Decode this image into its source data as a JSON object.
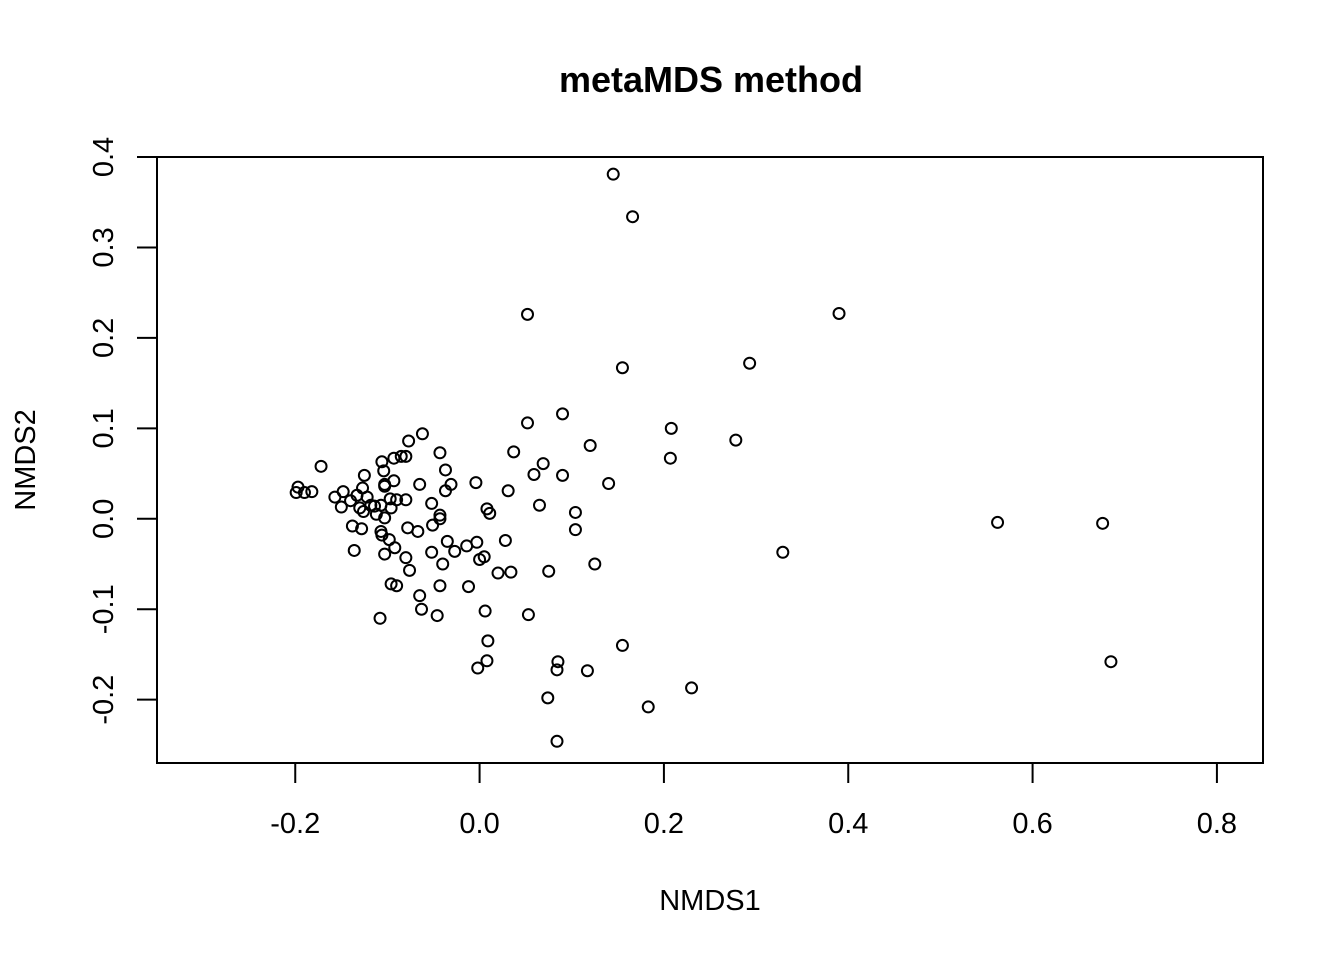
{
  "chart_data": {
    "type": "scatter",
    "title": "metaMDS method",
    "xlabel": "NMDS1",
    "ylabel": "NMDS2",
    "xlim": [
      -0.35,
      0.85
    ],
    "ylim": [
      -0.27,
      0.4
    ],
    "xticks": [
      -0.2,
      0.0,
      0.2,
      0.4,
      0.6,
      0.8
    ],
    "xtick_labels": [
      "-0.2",
      "0.0",
      "0.2",
      "0.4",
      "0.6",
      "0.8"
    ],
    "yticks": [
      -0.2,
      -0.1,
      0.0,
      0.1,
      0.2,
      0.3,
      0.4
    ],
    "ytick_labels": [
      "-0.2",
      "-0.1",
      "0.0",
      "0.1",
      "0.2",
      "0.3",
      "0.4"
    ],
    "grid": false,
    "marker": "open-circle",
    "series": [
      {
        "points": [
          [
            0.145,
            0.381
          ],
          [
            0.166,
            0.334
          ],
          [
            0.052,
            0.226
          ],
          [
            0.39,
            0.227
          ],
          [
            0.155,
            0.167
          ],
          [
            0.293,
            0.172
          ],
          [
            0.09,
            0.116
          ],
          [
            0.052,
            0.106
          ],
          [
            0.208,
            0.1
          ],
          [
            0.278,
            0.087
          ],
          [
            0.12,
            0.081
          ],
          [
            0.207,
            0.067
          ],
          [
            0.037,
            0.074
          ],
          [
            0.069,
            0.061
          ],
          [
            0.059,
            0.049
          ],
          [
            0.09,
            0.048
          ],
          [
            0.14,
            0.039
          ],
          [
            0.031,
            0.031
          ],
          [
            0.065,
            0.015
          ],
          [
            0.104,
            0.007
          ],
          [
            0.104,
            -0.012
          ],
          [
            0.562,
            -0.004
          ],
          [
            0.676,
            -0.005
          ],
          [
            0.329,
            -0.037
          ],
          [
            0.125,
            -0.05
          ],
          [
            0.075,
            -0.058
          ],
          [
            0.034,
            -0.059
          ],
          [
            0.02,
            -0.06
          ],
          [
            0.053,
            -0.106
          ],
          [
            0.155,
            -0.14
          ],
          [
            0.685,
            -0.158
          ],
          [
            0.085,
            -0.158
          ],
          [
            0.084,
            -0.167
          ],
          [
            0.117,
            -0.168
          ],
          [
            0.074,
            -0.198
          ],
          [
            0.23,
            -0.187
          ],
          [
            0.183,
            -0.208
          ],
          [
            0.084,
            -0.246
          ],
          [
            0.009,
            -0.135
          ],
          [
            0.008,
            -0.157
          ],
          [
            -0.002,
            -0.165
          ],
          [
            0.006,
            -0.102
          ],
          [
            0.028,
            -0.024
          ],
          [
            0.005,
            -0.042
          ],
          [
            0.0,
            -0.045
          ],
          [
            -0.003,
            -0.026
          ],
          [
            -0.014,
            -0.03
          ],
          [
            -0.027,
            -0.036
          ],
          [
            -0.012,
            -0.075
          ],
          [
            -0.043,
            -0.074
          ],
          [
            -0.046,
            -0.107
          ],
          [
            -0.04,
            -0.05
          ],
          [
            -0.035,
            -0.025
          ],
          [
            -0.052,
            -0.037
          ],
          [
            -0.063,
            -0.1
          ],
          [
            -0.065,
            -0.085
          ],
          [
            -0.076,
            -0.057
          ],
          [
            -0.08,
            -0.043
          ],
          [
            -0.09,
            -0.074
          ],
          [
            -0.096,
            -0.072
          ],
          [
            -0.108,
            -0.11
          ],
          [
            -0.103,
            -0.039
          ],
          [
            -0.092,
            -0.032
          ],
          [
            -0.098,
            -0.023
          ],
          [
            -0.106,
            -0.018
          ],
          [
            -0.107,
            -0.014
          ],
          [
            -0.128,
            -0.011
          ],
          [
            -0.138,
            -0.008
          ],
          [
            -0.136,
            -0.035
          ],
          [
            -0.078,
            -0.01
          ],
          [
            -0.067,
            -0.014
          ],
          [
            -0.051,
            -0.007
          ],
          [
            -0.043,
            0.0
          ],
          [
            -0.043,
            0.004
          ],
          [
            -0.052,
            0.017
          ],
          [
            -0.037,
            0.031
          ],
          [
            -0.031,
            0.038
          ],
          [
            -0.037,
            0.054
          ],
          [
            -0.043,
            0.073
          ],
          [
            -0.004,
            0.04
          ],
          [
            0.008,
            0.011
          ],
          [
            0.011,
            0.006
          ],
          [
            -0.065,
            0.038
          ],
          [
            -0.062,
            0.094
          ],
          [
            -0.077,
            0.086
          ],
          [
            -0.08,
            0.069
          ],
          [
            -0.085,
            0.069
          ],
          [
            -0.093,
            0.067
          ],
          [
            -0.106,
            0.063
          ],
          [
            -0.104,
            0.053
          ],
          [
            -0.125,
            0.048
          ],
          [
            -0.172,
            0.058
          ],
          [
            -0.103,
            0.038
          ],
          [
            -0.093,
            0.042
          ],
          [
            -0.08,
            0.021
          ],
          [
            -0.09,
            0.021
          ],
          [
            -0.097,
            0.022
          ],
          [
            -0.103,
            0.036
          ],
          [
            -0.107,
            0.015
          ],
          [
            -0.103,
            0.001
          ],
          [
            -0.096,
            0.012
          ],
          [
            -0.114,
            0.014
          ],
          [
            -0.118,
            0.015
          ],
          [
            -0.112,
            0.005
          ],
          [
            -0.126,
            0.008
          ],
          [
            -0.13,
            0.012
          ],
          [
            -0.133,
            0.026
          ],
          [
            -0.127,
            0.034
          ],
          [
            -0.122,
            0.024
          ],
          [
            -0.14,
            0.02
          ],
          [
            -0.15,
            0.013
          ],
          [
            -0.148,
            0.03
          ],
          [
            -0.157,
            0.024
          ],
          [
            -0.182,
            0.03
          ],
          [
            -0.19,
            0.029
          ],
          [
            -0.197,
            0.035
          ],
          [
            -0.199,
            0.029
          ]
        ]
      }
    ]
  }
}
